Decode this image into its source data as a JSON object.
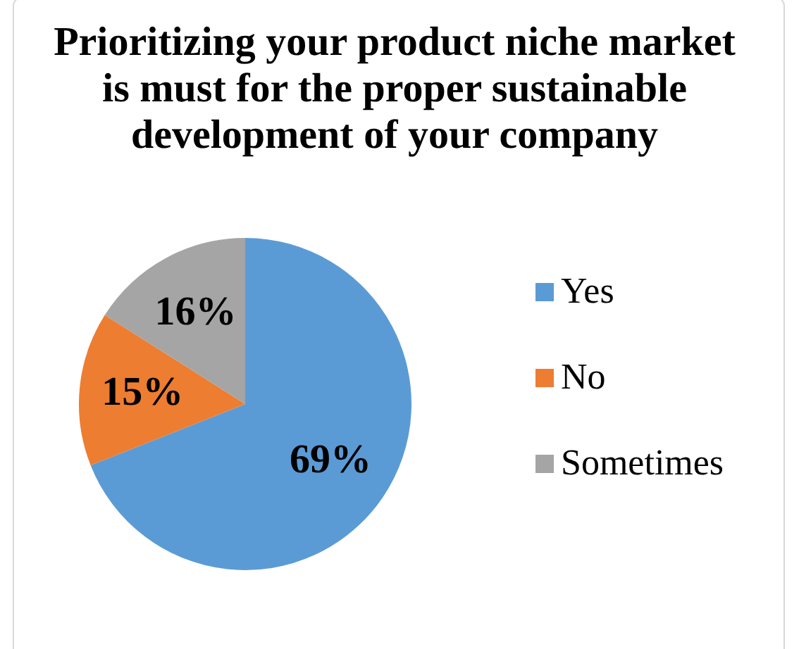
{
  "chart_data": {
    "type": "pie",
    "title": "Prioritizing your product niche market is must for the proper sustainable development of your company",
    "categories": [
      "Yes",
      "No",
      "Sometimes"
    ],
    "values": [
      69,
      15,
      16
    ],
    "value_labels": [
      "69%",
      "15%",
      "16%"
    ],
    "colors": [
      "#5b9bd5",
      "#ed7d31",
      "#a5a5a5"
    ],
    "legend": "right"
  }
}
